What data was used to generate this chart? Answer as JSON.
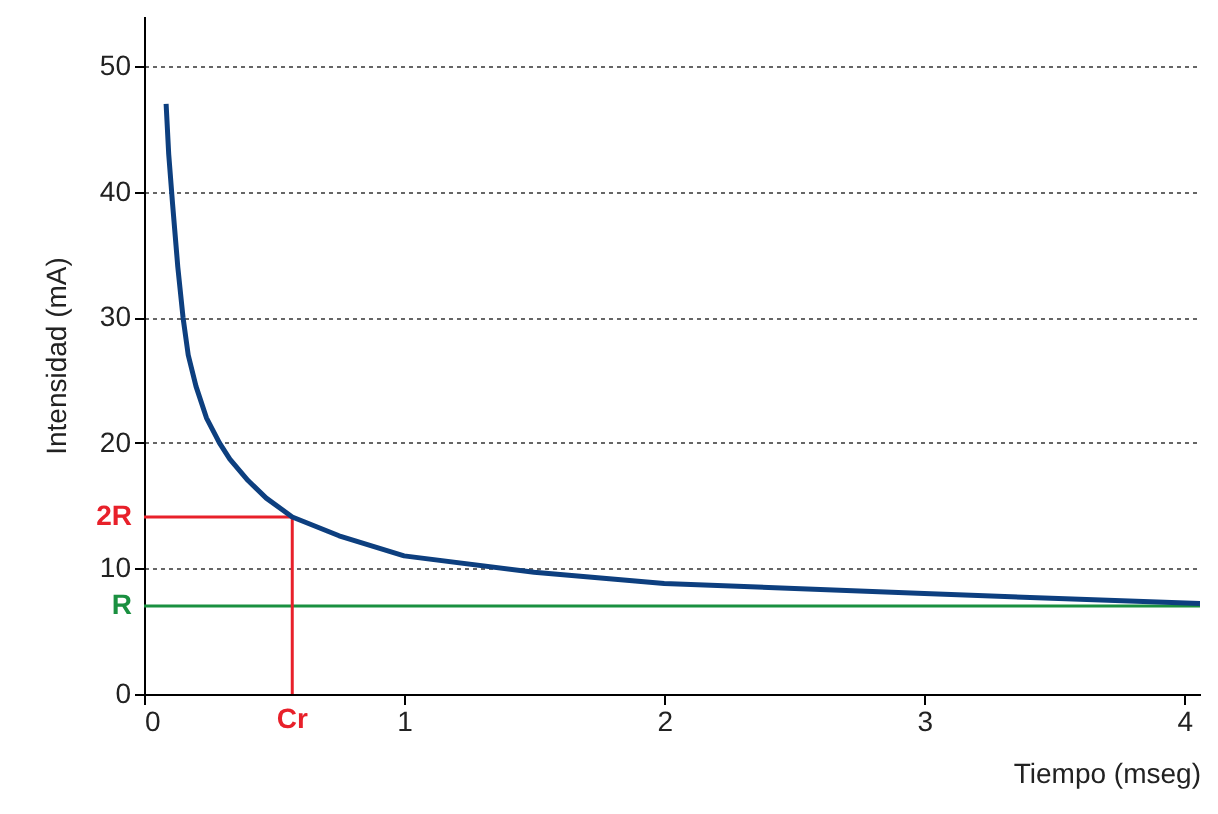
{
  "chart_data": {
    "type": "line",
    "xlabel": "Tiempo (mseg)",
    "ylabel": "Intensidad (mA)",
    "x": [
      0.085,
      0.095,
      0.11,
      0.13,
      0.15,
      0.17,
      0.2,
      0.24,
      0.29,
      0.33,
      0.4,
      0.47,
      0.57,
      0.75,
      1,
      1.5,
      2,
      3,
      4.06
    ],
    "series": [
      {
        "color": "#0d3f7f",
        "values": [
          47,
          43,
          39,
          34,
          30,
          27,
          24.5,
          22,
          20,
          18.7,
          17,
          15.6,
          14.1,
          12.6,
          11,
          9.7,
          8.8,
          8,
          7.2
        ]
      }
    ],
    "xlim": [
      0,
      4.06
    ],
    "xticks": [
      0,
      1,
      2,
      3,
      4
    ],
    "ylim": [
      0,
      54
    ],
    "yticks": [
      0,
      10,
      20,
      30,
      40,
      50
    ],
    "grid": "y",
    "marker": "none",
    "line_style": "solid",
    "ref_lines": [
      {
        "axis": "y",
        "value": 7,
        "label": "R",
        "color": "#1a9040"
      },
      {
        "axis": "y",
        "value": 14.1,
        "label": "2R",
        "color": "#e8202a"
      },
      {
        "axis": "x",
        "value": 0.57,
        "label": "Cr",
        "color": "#e8202a"
      }
    ]
  }
}
